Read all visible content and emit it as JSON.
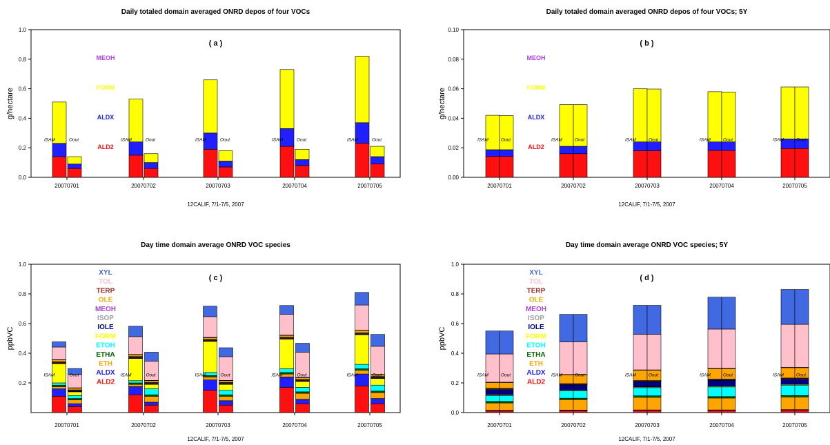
{
  "chart_data": [
    {
      "id": "a",
      "type": "bar",
      "stacked": true,
      "title": "Daily totaled domain averaged ONRD depos of four VOCs",
      "panel_label": "( a )",
      "xlabel": "12CALIF, 7/1-7/5, 2007",
      "ylabel": "g/hectare",
      "ylim": [
        0,
        1.0
      ],
      "yticks": [
        "0.0",
        "0.2",
        "0.4",
        "0.6",
        "0.8",
        "1.0"
      ],
      "categories": [
        "20070701",
        "20070702",
        "20070703",
        "20070704",
        "20070705"
      ],
      "bar_labels": [
        "ISAM",
        "Oout"
      ],
      "legend": [
        {
          "name": "MEOH",
          "color": "#B040E0"
        },
        {
          "name": "FORM",
          "color": "#FFFF00"
        },
        {
          "name": "ALDX",
          "color": "#2020FF"
        },
        {
          "name": "ALD2",
          "color": "#FF1010"
        }
      ],
      "groups": [
        [
          {
            "ALD2": 0.14,
            "ALDX": 0.09,
            "FORM": 0.28
          },
          {
            "ALD2": 0.06,
            "ALDX": 0.03,
            "FORM": 0.05
          }
        ],
        [
          {
            "ALD2": 0.15,
            "ALDX": 0.09,
            "FORM": 0.29
          },
          {
            "ALD2": 0.06,
            "ALDX": 0.04,
            "FORM": 0.06
          }
        ],
        [
          {
            "ALD2": 0.19,
            "ALDX": 0.11,
            "FORM": 0.36
          },
          {
            "ALD2": 0.07,
            "ALDX": 0.04,
            "FORM": 0.07
          }
        ],
        [
          {
            "ALD2": 0.21,
            "ALDX": 0.12,
            "FORM": 0.4
          },
          {
            "ALD2": 0.08,
            "ALDX": 0.04,
            "FORM": 0.07
          }
        ],
        [
          {
            "ALD2": 0.23,
            "ALDX": 0.14,
            "FORM": 0.45
          },
          {
            "ALD2": 0.09,
            "ALDX": 0.05,
            "FORM": 0.07
          }
        ]
      ]
    },
    {
      "id": "b",
      "type": "bar",
      "stacked": true,
      "title": "Daily totaled domain averaged ONRD depos of four VOCs;  5Y",
      "panel_label": "( b )",
      "xlabel": "12CALIF, 7/1-7/5, 2007",
      "ylabel": "g/hectare",
      "ylim": [
        0,
        0.1
      ],
      "yticks": [
        "0.00",
        "0.02",
        "0.04",
        "0.06",
        "0.08",
        "0.10"
      ],
      "categories": [
        "20070701",
        "20070702",
        "20070703",
        "20070704",
        "20070705"
      ],
      "bar_labels": [
        "ISAM",
        "Oout"
      ],
      "legend": [
        {
          "name": "MEOH",
          "color": "#B040E0"
        },
        {
          "name": "FORM",
          "color": "#FFFF00"
        },
        {
          "name": "ALDX",
          "color": "#2020FF"
        },
        {
          "name": "ALD2",
          "color": "#FF1010"
        }
      ],
      "groups": [
        [
          {
            "ALD2": 0.0142,
            "ALDX": 0.0045,
            "FORM": 0.0233
          },
          {
            "ALD2": 0.0142,
            "ALDX": 0.0045,
            "FORM": 0.0231
          }
        ],
        [
          {
            "ALD2": 0.016,
            "ALDX": 0.005,
            "FORM": 0.0282
          },
          {
            "ALD2": 0.016,
            "ALDX": 0.005,
            "FORM": 0.0282
          }
        ],
        [
          {
            "ALD2": 0.018,
            "ALDX": 0.006,
            "FORM": 0.036
          },
          {
            "ALD2": 0.018,
            "ALDX": 0.006,
            "FORM": 0.0358
          }
        ],
        [
          {
            "ALD2": 0.0182,
            "ALDX": 0.0058,
            "FORM": 0.034
          },
          {
            "ALD2": 0.0182,
            "ALDX": 0.0058,
            "FORM": 0.0338
          }
        ],
        [
          {
            "ALD2": 0.0195,
            "ALDX": 0.0065,
            "FORM": 0.0352
          },
          {
            "ALD2": 0.0195,
            "ALDX": 0.0065,
            "FORM": 0.0352
          }
        ]
      ]
    },
    {
      "id": "c",
      "type": "bar",
      "stacked": true,
      "title": "Day time domain average ONRD VOC species",
      "panel_label": "( c )",
      "xlabel": "12CALIF, 7/1-7/5, 2007",
      "ylabel": "ppbVC",
      "ylim": [
        0,
        1.0
      ],
      "yticks": [
        "0.2",
        "0.4",
        "0.6",
        "0.8",
        "1.0"
      ],
      "categories": [
        "20070701",
        "20070702",
        "20070703",
        "20070704",
        "20070705"
      ],
      "bar_labels": [
        "ISAM",
        "Oout"
      ],
      "legend": [
        {
          "name": "XYL",
          "color": "#4169E1"
        },
        {
          "name": "TOL",
          "color": "#FFC0CB"
        },
        {
          "name": "TERP",
          "color": "#A52A2A"
        },
        {
          "name": "OLE",
          "color": "#FFA500"
        },
        {
          "name": "MEOH",
          "color": "#B040E0"
        },
        {
          "name": "ISOP",
          "color": "#A0A0A0"
        },
        {
          "name": "IOLE",
          "color": "#000080"
        },
        {
          "name": "FORM",
          "color": "#FFFF00"
        },
        {
          "name": "ETOH",
          "color": "#00FFFF"
        },
        {
          "name": "ETHA",
          "color": "#006400"
        },
        {
          "name": "ETH",
          "color": "#FFA500"
        },
        {
          "name": "ALDX",
          "color": "#2020FF"
        },
        {
          "name": "ALD2",
          "color": "#FF1010"
        }
      ],
      "groups": [
        [
          {
            "ALD2": 0.11,
            "ALDX": 0.05,
            "ETH": 0.015,
            "ETHA": 0.01,
            "ETOH": 0.015,
            "FORM": 0.13,
            "IOLE": 0.005,
            "ISOP": 0.004,
            "MEOH": 0.004,
            "OLE": 0.012,
            "TERP": 0.002,
            "TOL": 0.085,
            "XYL": 0.035
          },
          {
            "ALD2": 0.04,
            "ALDX": 0.02,
            "ETH": 0.025,
            "ETHA": 0.01,
            "ETOH": 0.02,
            "FORM": 0.025,
            "IOLE": 0.005,
            "ISOP": 0.004,
            "MEOH": 0.004,
            "OLE": 0.012,
            "TERP": 0.002,
            "TOL": 0.09,
            "XYL": 0.04
          }
        ],
        [
          {
            "ALD2": 0.12,
            "ALDX": 0.055,
            "ETH": 0.015,
            "ETHA": 0.01,
            "ETOH": 0.015,
            "FORM": 0.15,
            "IOLE": 0.005,
            "ISOP": 0.004,
            "MEOH": 0.004,
            "OLE": 0.012,
            "TERP": 0.002,
            "TOL": 0.12,
            "XYL": 0.07
          },
          {
            "ALD2": 0.05,
            "ALDX": 0.02,
            "ETH": 0.04,
            "ETHA": 0.01,
            "ETOH": 0.04,
            "FORM": 0.03,
            "IOLE": 0.005,
            "ISOP": 0.004,
            "MEOH": 0.004,
            "OLE": 0.012,
            "TERP": 0.002,
            "TOL": 0.13,
            "XYL": 0.06
          }
        ],
        [
          {
            "ALD2": 0.15,
            "ALDX": 0.07,
            "ETH": 0.02,
            "ETHA": 0.01,
            "ETOH": 0.02,
            "FORM": 0.21,
            "IOLE": 0.005,
            "ISOP": 0.004,
            "MEOH": 0.004,
            "OLE": 0.012,
            "TERP": 0.002,
            "TOL": 0.14,
            "XYL": 0.07
          },
          {
            "ALD2": 0.05,
            "ALDX": 0.03,
            "ETH": 0.03,
            "ETHA": 0.01,
            "ETOH": 0.03,
            "FORM": 0.04,
            "IOLE": 0.005,
            "ISOP": 0.004,
            "MEOH": 0.004,
            "OLE": 0.012,
            "TERP": 0.002,
            "TOL": 0.16,
            "XYL": 0.06
          }
        ],
        [
          {
            "ALD2": 0.17,
            "ALDX": 0.07,
            "ETH": 0.02,
            "ETHA": 0.01,
            "ETOH": 0.025,
            "FORM": 0.2,
            "IOLE": 0.005,
            "ISOP": 0.004,
            "MEOH": 0.004,
            "OLE": 0.012,
            "TERP": 0.002,
            "TOL": 0.14,
            "XYL": 0.06
          },
          {
            "ALD2": 0.06,
            "ALDX": 0.03,
            "ETH": 0.04,
            "ETHA": 0.01,
            "ETOH": 0.03,
            "FORM": 0.04,
            "IOLE": 0.005,
            "ISOP": 0.004,
            "MEOH": 0.004,
            "OLE": 0.012,
            "TERP": 0.002,
            "TOL": 0.17,
            "XYL": 0.06
          }
        ],
        [
          {
            "ALD2": 0.18,
            "ALDX": 0.08,
            "ETH": 0.025,
            "ETHA": 0.01,
            "ETOH": 0.03,
            "FORM": 0.2,
            "IOLE": 0.005,
            "ISOP": 0.004,
            "MEOH": 0.004,
            "OLE": 0.015,
            "TERP": 0.002,
            "TOL": 0.17,
            "XYL": 0.085
          },
          {
            "ALD2": 0.06,
            "ALDX": 0.035,
            "ETH": 0.04,
            "ETHA": 0.01,
            "ETOH": 0.04,
            "FORM": 0.045,
            "IOLE": 0.005,
            "ISOP": 0.004,
            "MEOH": 0.004,
            "OLE": 0.012,
            "TERP": 0.002,
            "TOL": 0.19,
            "XYL": 0.08
          }
        ]
      ]
    },
    {
      "id": "d",
      "type": "bar",
      "stacked": true,
      "title": "Day time domain average ONRD VOC species; 5Y",
      "panel_label": "( d )",
      "xlabel": "12CALIF, 7/1-7/5, 2007",
      "ylabel": "ppbVC",
      "ylim": [
        0,
        1.0
      ],
      "yticks": [
        "0.0",
        "0.2",
        "0.4",
        "0.6",
        "0.8",
        "1.0"
      ],
      "categories": [
        "20070701",
        "20070702",
        "20070703",
        "20070704",
        "20070705"
      ],
      "bar_labels": [
        "ISAM",
        "Oout"
      ],
      "legend": [
        {
          "name": "XYL",
          "color": "#4169E1"
        },
        {
          "name": "TOL",
          "color": "#FFC0CB"
        },
        {
          "name": "TERP",
          "color": "#A52A2A"
        },
        {
          "name": "OLE",
          "color": "#FFA500"
        },
        {
          "name": "MEOH",
          "color": "#B040E0"
        },
        {
          "name": "ISOP",
          "color": "#A0A0A0"
        },
        {
          "name": "IOLE",
          "color": "#000080"
        },
        {
          "name": "FORM",
          "color": "#FFFF00"
        },
        {
          "name": "ETOH",
          "color": "#00FFFF"
        },
        {
          "name": "ETHA",
          "color": "#006400"
        },
        {
          "name": "ETH",
          "color": "#FFA500"
        },
        {
          "name": "ALDX",
          "color": "#2020FF"
        },
        {
          "name": "ALD2",
          "color": "#FF1010"
        }
      ],
      "groups": [
        [
          {
            "ALD2": 0.01,
            "ALDX": 0.005,
            "ETH": 0.05,
            "ETHA": 0.01,
            "ETOH": 0.04,
            "FORM": 0.005,
            "IOLE": 0.035,
            "ISOP": 0.004,
            "MEOH": 0.004,
            "OLE": 0.04,
            "TERP": 0.002,
            "TOL": 0.19,
            "XYL": 0.155
          },
          {
            "ALD2": 0.01,
            "ALDX": 0.005,
            "ETH": 0.05,
            "ETHA": 0.01,
            "ETOH": 0.04,
            "FORM": 0.005,
            "IOLE": 0.035,
            "ISOP": 0.004,
            "MEOH": 0.004,
            "OLE": 0.04,
            "TERP": 0.002,
            "TOL": 0.19,
            "XYL": 0.155
          }
        ],
        [
          {
            "ALD2": 0.012,
            "ALDX": 0.005,
            "ETH": 0.07,
            "ETHA": 0.01,
            "ETOH": 0.05,
            "FORM": 0.005,
            "IOLE": 0.035,
            "ISOP": 0.004,
            "MEOH": 0.004,
            "OLE": 0.06,
            "TERP": 0.002,
            "TOL": 0.22,
            "XYL": 0.185
          },
          {
            "ALD2": 0.012,
            "ALDX": 0.005,
            "ETH": 0.07,
            "ETHA": 0.01,
            "ETOH": 0.05,
            "FORM": 0.005,
            "IOLE": 0.035,
            "ISOP": 0.004,
            "MEOH": 0.004,
            "OLE": 0.06,
            "TERP": 0.002,
            "TOL": 0.22,
            "XYL": 0.185
          }
        ],
        [
          {
            "ALD2": 0.013,
            "ALDX": 0.005,
            "ETH": 0.085,
            "ETHA": 0.01,
            "ETOH": 0.055,
            "FORM": 0.005,
            "IOLE": 0.035,
            "ISOP": 0.004,
            "MEOH": 0.004,
            "OLE": 0.07,
            "TERP": 0.002,
            "TOL": 0.24,
            "XYL": 0.195
          },
          {
            "ALD2": 0.013,
            "ALDX": 0.005,
            "ETH": 0.085,
            "ETHA": 0.01,
            "ETOH": 0.055,
            "FORM": 0.005,
            "IOLE": 0.035,
            "ISOP": 0.004,
            "MEOH": 0.004,
            "OLE": 0.07,
            "TERP": 0.002,
            "TOL": 0.24,
            "XYL": 0.195
          }
        ],
        [
          {
            "ALD2": 0.013,
            "ALDX": 0.005,
            "ETH": 0.08,
            "ETHA": 0.01,
            "ETOH": 0.065,
            "FORM": 0.005,
            "IOLE": 0.04,
            "ISOP": 0.004,
            "MEOH": 0.004,
            "OLE": 0.07,
            "TERP": 0.002,
            "TOL": 0.265,
            "XYL": 0.215
          },
          {
            "ALD2": 0.013,
            "ALDX": 0.005,
            "ETH": 0.08,
            "ETHA": 0.01,
            "ETOH": 0.065,
            "FORM": 0.005,
            "IOLE": 0.04,
            "ISOP": 0.004,
            "MEOH": 0.004,
            "OLE": 0.07,
            "TERP": 0.002,
            "TOL": 0.265,
            "XYL": 0.215
          }
        ],
        [
          {
            "ALD2": 0.015,
            "ALDX": 0.005,
            "ETH": 0.085,
            "ETHA": 0.01,
            "ETOH": 0.07,
            "FORM": 0.005,
            "IOLE": 0.035,
            "ISOP": 0.004,
            "MEOH": 0.004,
            "OLE": 0.07,
            "TERP": 0.002,
            "TOL": 0.29,
            "XYL": 0.235
          },
          {
            "ALD2": 0.015,
            "ALDX": 0.005,
            "ETH": 0.085,
            "ETHA": 0.01,
            "ETOH": 0.07,
            "FORM": 0.005,
            "IOLE": 0.035,
            "ISOP": 0.004,
            "MEOH": 0.004,
            "OLE": 0.07,
            "TERP": 0.002,
            "TOL": 0.29,
            "XYL": 0.235
          }
        ]
      ]
    }
  ]
}
